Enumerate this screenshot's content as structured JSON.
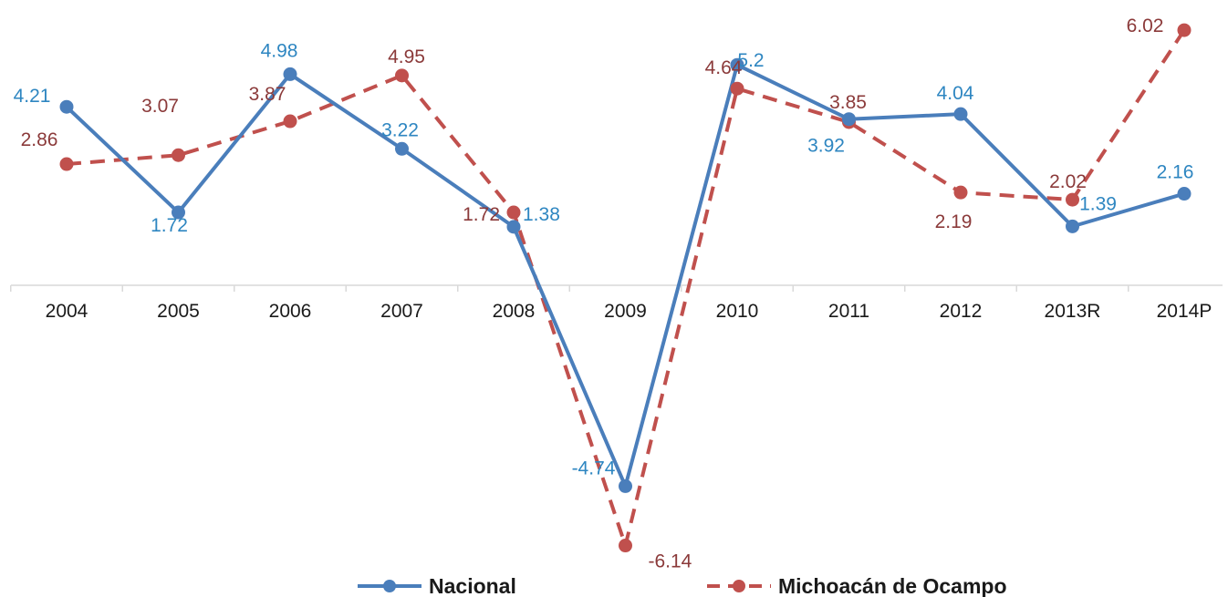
{
  "chart_data": {
    "type": "line",
    "categories": [
      "2004",
      "2005",
      "2006",
      "2007",
      "2008",
      "2009",
      "2010",
      "2011",
      "2012",
      "2013R",
      "2014P"
    ],
    "series": [
      {
        "name": "Nacional",
        "values": [
          4.21,
          1.72,
          4.98,
          3.22,
          1.38,
          -4.74,
          5.2,
          3.92,
          4.04,
          1.39,
          2.16
        ],
        "color": "#4a7ebb",
        "data_label_color": "#2e86c1",
        "line_style": "solid",
        "marker": "circle"
      },
      {
        "name": "Michoacán de Ocampo",
        "values": [
          2.86,
          3.07,
          3.87,
          4.95,
          1.72,
          -6.14,
          4.64,
          3.85,
          2.19,
          2.02,
          6.02
        ],
        "color": "#c0504d",
        "data_label_color": "#8b3a3a",
        "line_style": "dashed",
        "marker": "circle"
      }
    ],
    "title": "",
    "xlabel": "",
    "ylabel": "",
    "legend_position": "bottom",
    "grid": false,
    "ylim": [
      -6.8,
      6.8
    ]
  }
}
